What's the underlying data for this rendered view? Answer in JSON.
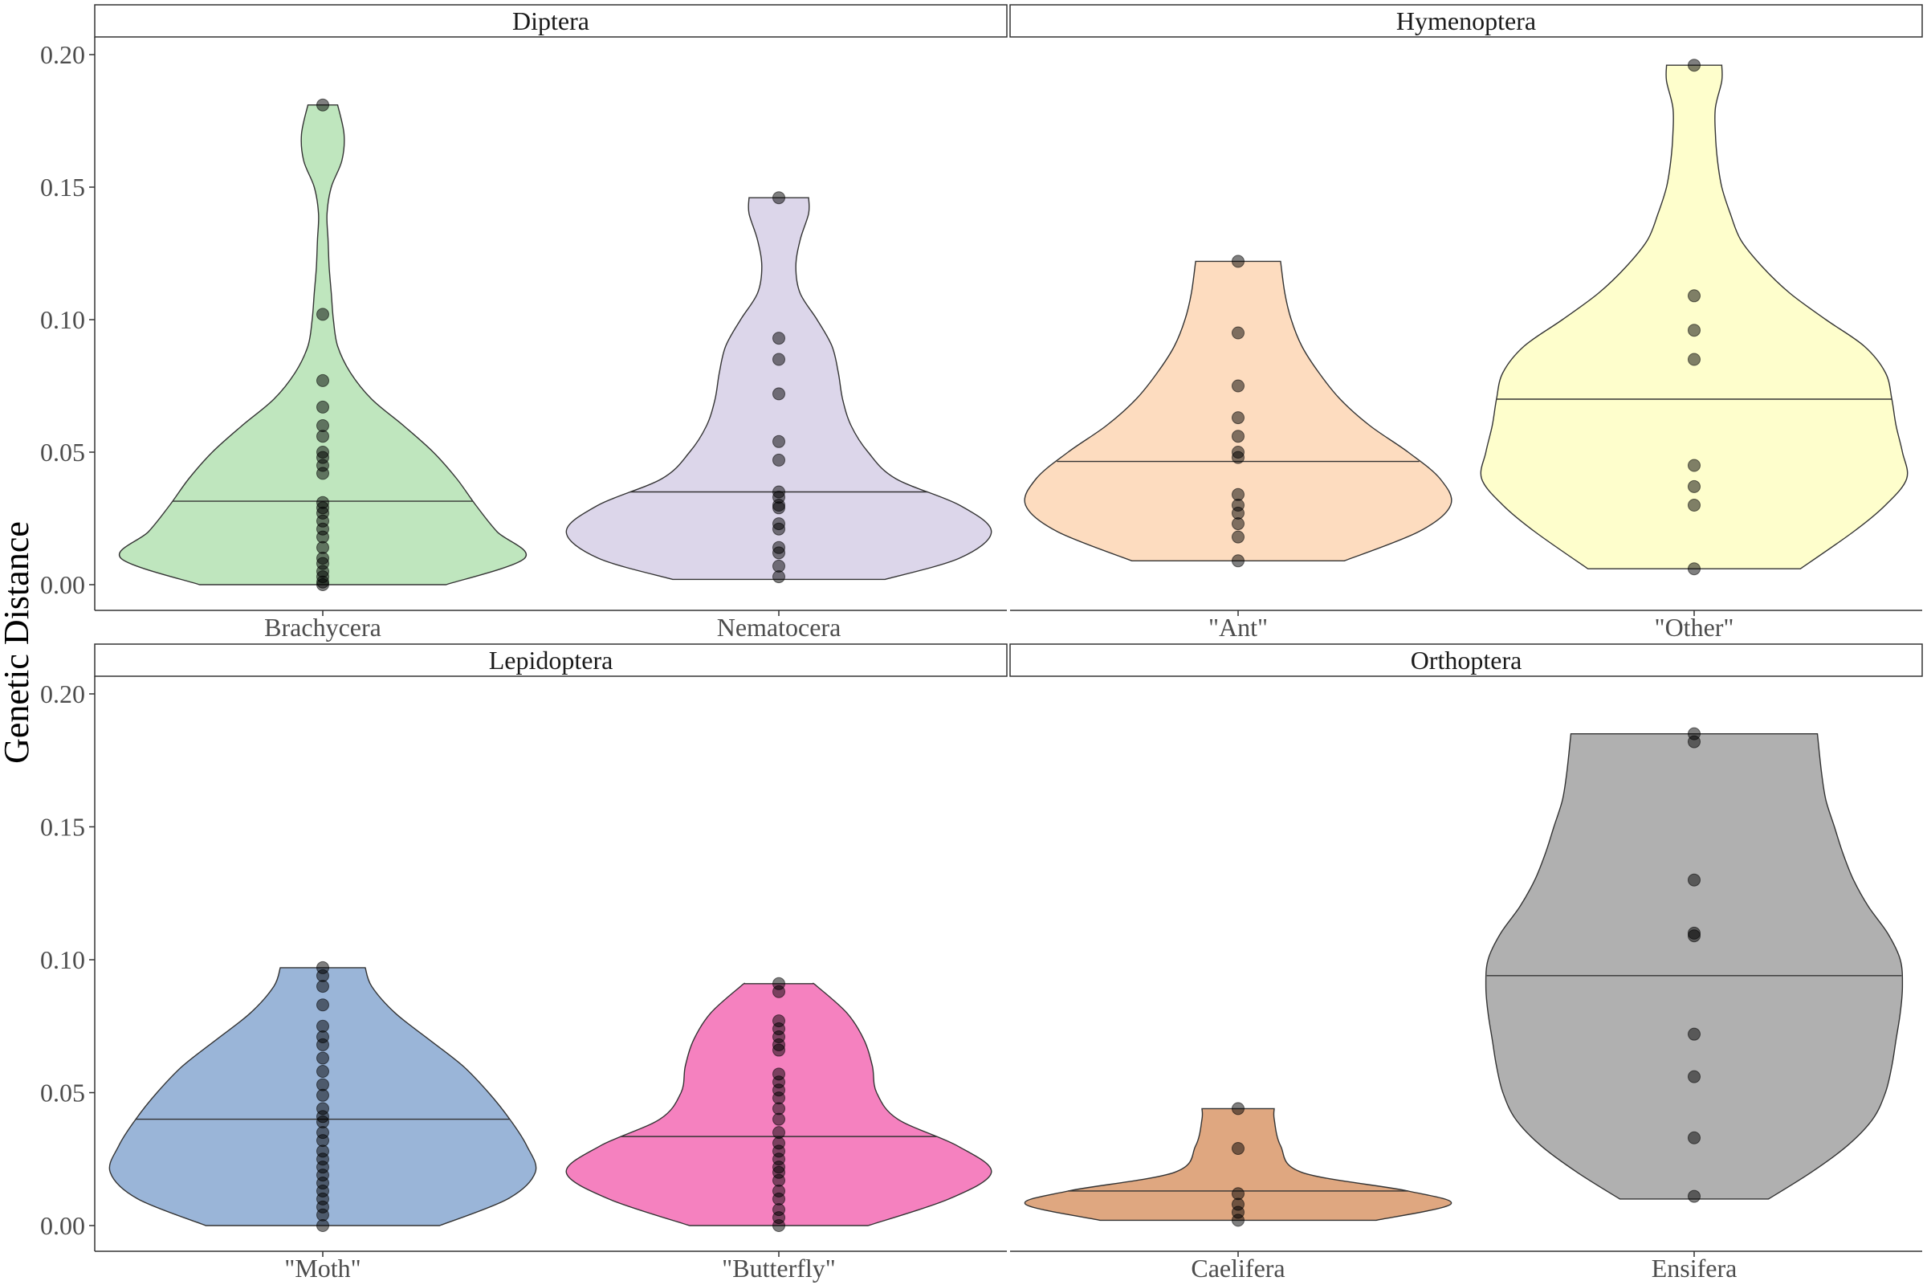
{
  "chart_data": {
    "type": "violin",
    "ylabel": "Genetic Distance",
    "ylim": [
      0,
      0.2
    ],
    "y_ticks": [
      "0.00",
      "0.05",
      "0.10",
      "0.15",
      "0.20"
    ],
    "grid": false,
    "point_color": "#000000",
    "panels": [
      {
        "title": "Diptera",
        "groups": [
          {
            "label": "Brachycera",
            "color": "#bfe6be",
            "min": 0.0,
            "max": 0.181,
            "median": 0.0315,
            "profile": [
              [
                0.0,
                0.58
              ],
              [
                0.01,
                0.95
              ],
              [
                0.02,
                0.82
              ],
              [
                0.03,
                0.72
              ],
              [
                0.04,
                0.63
              ],
              [
                0.05,
                0.52
              ],
              [
                0.06,
                0.38
              ],
              [
                0.07,
                0.23
              ],
              [
                0.08,
                0.13
              ],
              [
                0.09,
                0.07
              ],
              [
                0.1,
                0.05
              ],
              [
                0.11,
                0.04
              ],
              [
                0.12,
                0.03
              ],
              [
                0.13,
                0.025
              ],
              [
                0.14,
                0.02
              ],
              [
                0.15,
                0.04
              ],
              [
                0.16,
                0.09
              ],
              [
                0.17,
                0.1
              ],
              [
                0.181,
                0.07
              ]
            ],
            "points": [
              0.181,
              0.102,
              0.077,
              0.067,
              0.06,
              0.056,
              0.05,
              0.048,
              0.045,
              0.042,
              0.031,
              0.029,
              0.027,
              0.024,
              0.021,
              0.018,
              0.014,
              0.01,
              0.008,
              0.005,
              0.003,
              0.001,
              0.0
            ]
          },
          {
            "label": "Nematocera",
            "color": "#dcd6ea",
            "min": 0.002,
            "max": 0.146,
            "median": 0.035,
            "profile": [
              [
                0.002,
                0.5
              ],
              [
                0.01,
                0.85
              ],
              [
                0.02,
                1.0
              ],
              [
                0.03,
                0.85
              ],
              [
                0.04,
                0.55
              ],
              [
                0.05,
                0.42
              ],
              [
                0.06,
                0.34
              ],
              [
                0.07,
                0.3
              ],
              [
                0.08,
                0.28
              ],
              [
                0.09,
                0.25
              ],
              [
                0.1,
                0.18
              ],
              [
                0.11,
                0.1
              ],
              [
                0.12,
                0.08
              ],
              [
                0.13,
                0.1
              ],
              [
                0.14,
                0.14
              ],
              [
                0.146,
                0.14
              ]
            ],
            "points": [
              0.146,
              0.093,
              0.085,
              0.072,
              0.054,
              0.047,
              0.035,
              0.033,
              0.03,
              0.029,
              0.023,
              0.021,
              0.014,
              0.012,
              0.007,
              0.003
            ]
          }
        ]
      },
      {
        "title": "Hymenoptera",
        "groups": [
          {
            "label": "\"Ant\"",
            "color": "#fddcbf",
            "min": 0.009,
            "max": 0.122,
            "median": 0.0465,
            "profile": [
              [
                0.009,
                0.5
              ],
              [
                0.02,
                0.85
              ],
              [
                0.03,
                1.0
              ],
              [
                0.04,
                0.95
              ],
              [
                0.05,
                0.8
              ],
              [
                0.06,
                0.62
              ],
              [
                0.07,
                0.48
              ],
              [
                0.08,
                0.38
              ],
              [
                0.09,
                0.3
              ],
              [
                0.1,
                0.25
              ],
              [
                0.11,
                0.22
              ],
              [
                0.122,
                0.2
              ]
            ],
            "points": [
              0.122,
              0.095,
              0.075,
              0.063,
              0.056,
              0.05,
              0.048,
              0.034,
              0.03,
              0.027,
              0.023,
              0.018,
              0.009
            ]
          },
          {
            "label": "\"Other\"",
            "color": "#fefecc",
            "min": 0.006,
            "max": 0.196,
            "median": 0.07,
            "profile": [
              [
                0.006,
                0.5
              ],
              [
                0.02,
                0.75
              ],
              [
                0.03,
                0.9
              ],
              [
                0.04,
                1.0
              ],
              [
                0.05,
                0.98
              ],
              [
                0.06,
                0.95
              ],
              [
                0.07,
                0.93
              ],
              [
                0.08,
                0.9
              ],
              [
                0.09,
                0.8
              ],
              [
                0.1,
                0.62
              ],
              [
                0.11,
                0.45
              ],
              [
                0.12,
                0.32
              ],
              [
                0.13,
                0.22
              ],
              [
                0.14,
                0.17
              ],
              [
                0.15,
                0.13
              ],
              [
                0.16,
                0.11
              ],
              [
                0.17,
                0.1
              ],
              [
                0.18,
                0.1
              ],
              [
                0.19,
                0.13
              ],
              [
                0.196,
                0.13
              ]
            ],
            "points": [
              0.196,
              0.109,
              0.096,
              0.085,
              0.045,
              0.037,
              0.03,
              0.006
            ]
          }
        ]
      },
      {
        "title": "Lepidoptera",
        "groups": [
          {
            "label": "\"Moth\"",
            "color": "#9ab5d8",
            "min": 0.0,
            "max": 0.097,
            "median": 0.04,
            "profile": [
              [
                0.0,
                0.55
              ],
              [
                0.01,
                0.87
              ],
              [
                0.02,
                1.0
              ],
              [
                0.03,
                0.96
              ],
              [
                0.04,
                0.88
              ],
              [
                0.05,
                0.78
              ],
              [
                0.06,
                0.66
              ],
              [
                0.07,
                0.5
              ],
              [
                0.08,
                0.34
              ],
              [
                0.09,
                0.23
              ],
              [
                0.097,
                0.2
              ]
            ],
            "points": [
              0.097,
              0.094,
              0.09,
              0.083,
              0.075,
              0.071,
              0.068,
              0.063,
              0.058,
              0.053,
              0.049,
              0.044,
              0.041,
              0.039,
              0.035,
              0.032,
              0.028,
              0.025,
              0.022,
              0.019,
              0.016,
              0.013,
              0.01,
              0.007,
              0.004,
              0.0
            ]
          },
          {
            "label": "\"Butterfly\"",
            "color": "#f581bf",
            "min": 0.0,
            "max": 0.091,
            "median": 0.0335,
            "profile": [
              [
                0.0,
                0.42
              ],
              [
                0.01,
                0.8
              ],
              [
                0.02,
                1.0
              ],
              [
                0.03,
                0.84
              ],
              [
                0.04,
                0.56
              ],
              [
                0.05,
                0.46
              ],
              [
                0.06,
                0.44
              ],
              [
                0.07,
                0.4
              ],
              [
                0.08,
                0.32
              ],
              [
                0.09,
                0.18
              ],
              [
                0.091,
                0.16
              ]
            ],
            "points": [
              0.091,
              0.088,
              0.077,
              0.074,
              0.071,
              0.068,
              0.066,
              0.057,
              0.054,
              0.051,
              0.048,
              0.044,
              0.04,
              0.035,
              0.031,
              0.028,
              0.025,
              0.022,
              0.02,
              0.017,
              0.013,
              0.01,
              0.006,
              0.003,
              0.0
            ]
          }
        ]
      },
      {
        "title": "Orthoptera",
        "groups": [
          {
            "label": "Caelifera",
            "color": "#dfa780",
            "min": 0.002,
            "max": 0.044,
            "median": 0.013,
            "profile": [
              [
                0.002,
                0.65
              ],
              [
                0.008,
                1.0
              ],
              [
                0.013,
                0.8
              ],
              [
                0.02,
                0.3
              ],
              [
                0.03,
                0.2
              ],
              [
                0.04,
                0.17
              ],
              [
                0.044,
                0.17
              ]
            ],
            "points": [
              0.044,
              0.029,
              0.012,
              0.008,
              0.005,
              0.002
            ]
          },
          {
            "label": "Ensifera",
            "color": "#b0b0b0",
            "min": 0.01,
            "max": 0.185,
            "median": 0.094,
            "profile": [
              [
                0.01,
                0.35
              ],
              [
                0.02,
                0.55
              ],
              [
                0.03,
                0.72
              ],
              [
                0.04,
                0.84
              ],
              [
                0.05,
                0.9
              ],
              [
                0.06,
                0.93
              ],
              [
                0.07,
                0.95
              ],
              [
                0.08,
                0.97
              ],
              [
                0.09,
                0.98
              ],
              [
                0.1,
                0.97
              ],
              [
                0.11,
                0.91
              ],
              [
                0.12,
                0.82
              ],
              [
                0.13,
                0.75
              ],
              [
                0.14,
                0.7
              ],
              [
                0.15,
                0.66
              ],
              [
                0.16,
                0.62
              ],
              [
                0.17,
                0.6
              ],
              [
                0.185,
                0.58
              ]
            ],
            "points": [
              0.185,
              0.182,
              0.13,
              0.11,
              0.109,
              0.072,
              0.056,
              0.033,
              0.011
            ]
          }
        ]
      }
    ]
  }
}
